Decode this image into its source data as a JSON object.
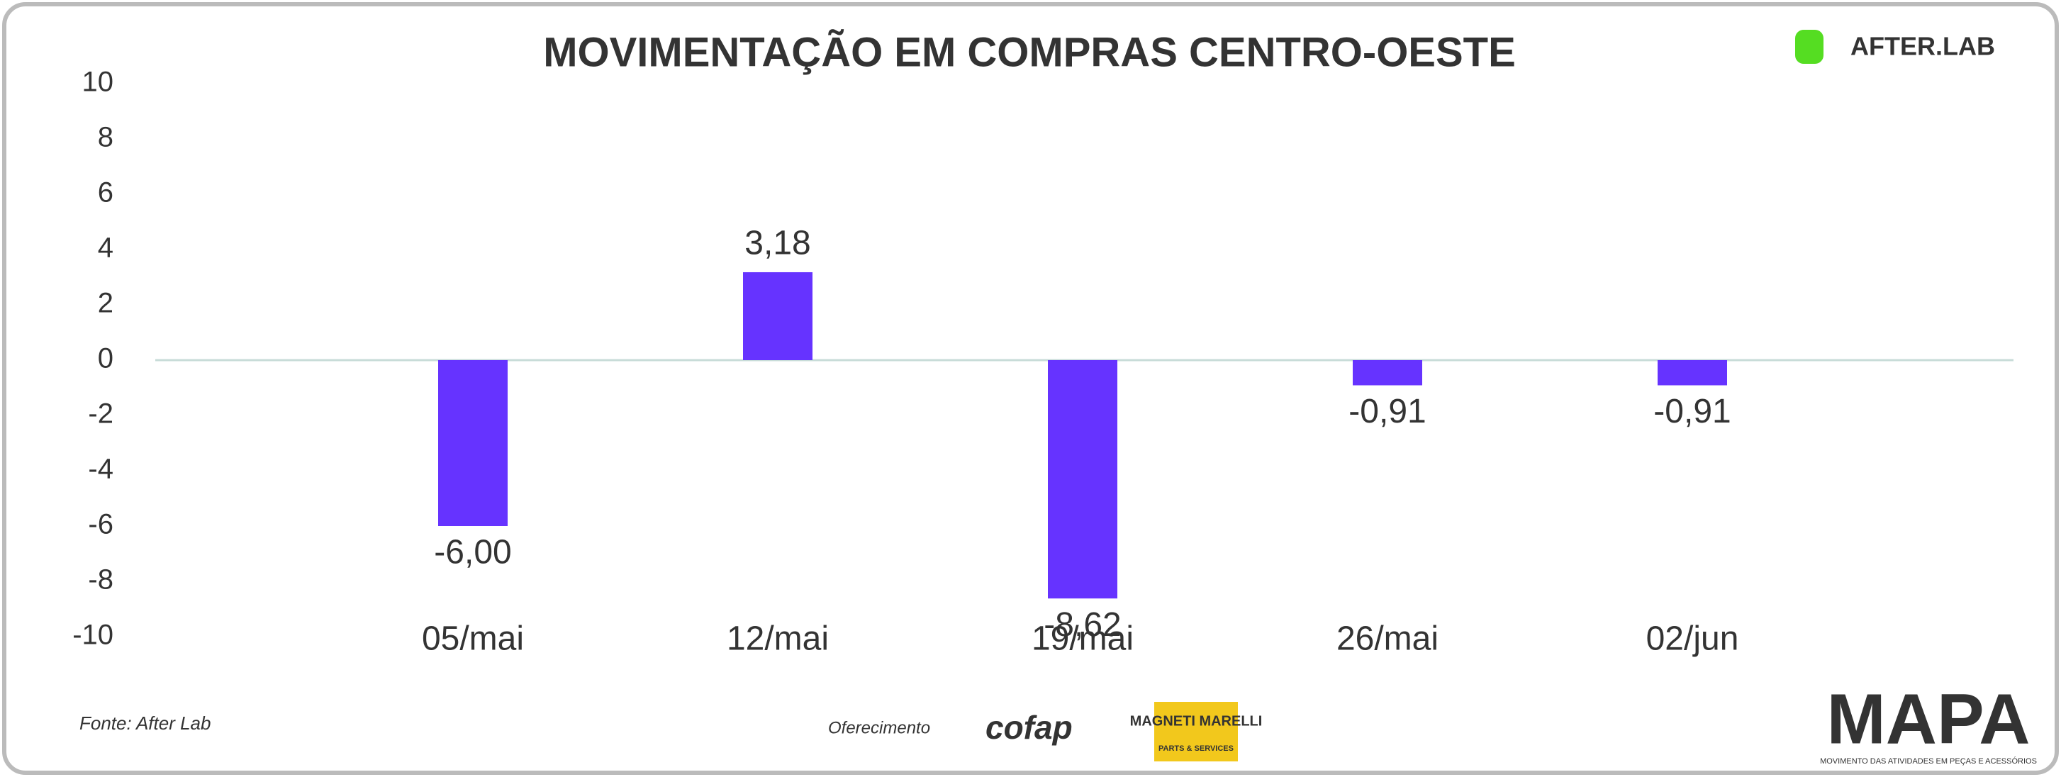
{
  "chart_data": {
    "type": "bar",
    "title": "MOVIMENTAÇÃO EM COMPRAS CENTRO-OESTE",
    "categories": [
      "05/mai",
      "12/mai",
      "19/mai",
      "26/mai",
      "02/jun"
    ],
    "values": [
      -6.0,
      3.18,
      -8.62,
      -0.91,
      -0.91
    ],
    "value_labels": [
      "-6,00",
      "3,18",
      "-8,62",
      "-0,91",
      "-0,91"
    ],
    "color": "#6633ff",
    "ylim": [
      -10,
      10
    ],
    "yticks": [
      -10,
      -8,
      -6,
      -4,
      -2,
      0,
      2,
      4,
      6,
      8,
      10
    ],
    "grid": false
  },
  "footer": {
    "source": "Fonte: After Lab",
    "sponsor_label": "Oferecimento",
    "sponsors": [
      "cofap",
      "MAGNETI MARELLI",
      "PARTS & SERVICES"
    ],
    "brand": "AFTER.LAB",
    "mapa": "MAPA",
    "mapa_tagline": "MOVIMENTO DAS ATIVIDADES EM PEÇAS E ACESSÓRIOS"
  }
}
